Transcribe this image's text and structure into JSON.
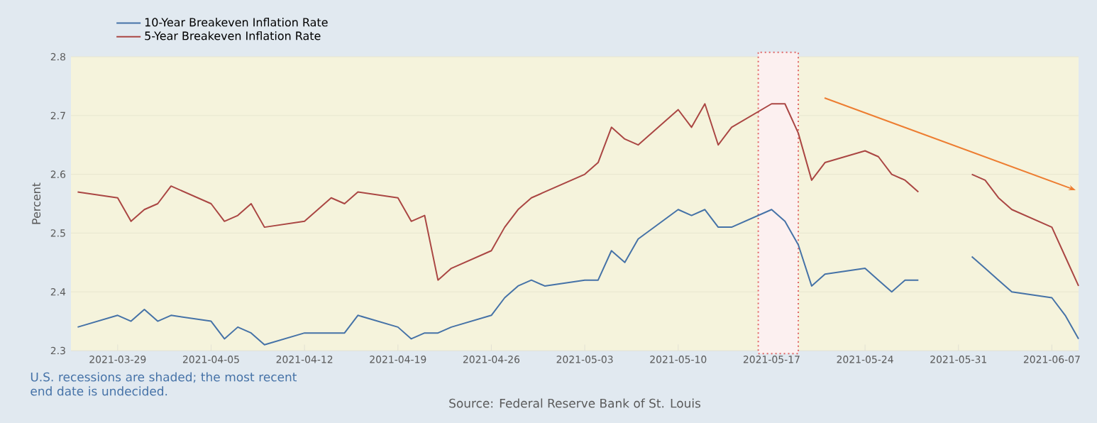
{
  "chart_data": {
    "type": "line",
    "ylabel": "Percent",
    "x": [
      "2021-03-26",
      "2021-03-29",
      "2021-03-30",
      "2021-03-31",
      "2021-04-01",
      "2021-04-02",
      "2021-04-05",
      "2021-04-06",
      "2021-04-07",
      "2021-04-08",
      "2021-04-09",
      "2021-04-12",
      "2021-04-13",
      "2021-04-14",
      "2021-04-15",
      "2021-04-16",
      "2021-04-19",
      "2021-04-20",
      "2021-04-21",
      "2021-04-22",
      "2021-04-23",
      "2021-04-26",
      "2021-04-27",
      "2021-04-28",
      "2021-04-29",
      "2021-04-30",
      "2021-05-03",
      "2021-05-04",
      "2021-05-05",
      "2021-05-06",
      "2021-05-07",
      "2021-05-10",
      "2021-05-11",
      "2021-05-12",
      "2021-05-13",
      "2021-05-14",
      "2021-05-17",
      "2021-05-18",
      "2021-05-19",
      "2021-05-20",
      "2021-05-21",
      "2021-05-24",
      "2021-05-25",
      "2021-05-26",
      "2021-05-27",
      "2021-05-28",
      "2021-05-31",
      "2021-06-01",
      "2021-06-02",
      "2021-06-03",
      "2021-06-04",
      "2021-06-07",
      "2021-06-08",
      "2021-06-09"
    ],
    "series": [
      {
        "name": "10-Year Breakeven Inflation Rate",
        "color": "#4572a7",
        "values": [
          2.34,
          2.36,
          2.35,
          2.37,
          2.35,
          2.36,
          2.35,
          2.32,
          2.34,
          2.33,
          2.31,
          2.33,
          2.33,
          2.33,
          2.33,
          2.36,
          2.34,
          2.32,
          2.33,
          2.33,
          2.34,
          2.36,
          2.39,
          2.41,
          2.42,
          2.41,
          2.42,
          2.42,
          2.47,
          2.45,
          2.49,
          2.54,
          2.53,
          2.54,
          2.51,
          2.51,
          2.54,
          2.52,
          2.48,
          2.41,
          2.43,
          2.44,
          2.42,
          2.4,
          2.42,
          2.42,
          null,
          2.46,
          2.44,
          2.42,
          2.4,
          2.39,
          2.36,
          2.32
        ]
      },
      {
        "name": "5-Year Breakeven Inflation Rate",
        "color": "#aa4643",
        "values": [
          2.57,
          2.56,
          2.52,
          2.54,
          2.55,
          2.58,
          2.55,
          2.52,
          2.53,
          2.55,
          2.51,
          2.52,
          2.54,
          2.56,
          2.55,
          2.57,
          2.56,
          2.52,
          2.53,
          2.42,
          2.44,
          2.47,
          2.51,
          2.54,
          2.56,
          2.57,
          2.6,
          2.62,
          2.68,
          2.66,
          2.65,
          2.71,
          2.68,
          2.72,
          2.65,
          2.68,
          2.72,
          2.72,
          2.67,
          2.59,
          2.62,
          2.64,
          2.63,
          2.6,
          2.59,
          2.57,
          null,
          2.6,
          2.59,
          2.56,
          2.54,
          2.51,
          2.46,
          2.41
        ]
      }
    ],
    "xlim": [
      "2021-03-25T12:00",
      "2021-06-09"
    ],
    "xticks": [
      "2021-03-29",
      "2021-04-05",
      "2021-04-12",
      "2021-04-19",
      "2021-04-26",
      "2021-05-03",
      "2021-05-10",
      "2021-05-17",
      "2021-05-24",
      "2021-05-31",
      "2021-06-07"
    ],
    "ylim": [
      2.3,
      2.8
    ],
    "yticks": [
      2.3,
      2.4,
      2.5,
      2.6,
      2.7,
      2.8
    ],
    "bands": [
      {
        "axis": "x",
        "from": "2021-05-16",
        "to": "2021-05-19",
        "color": "#e06666"
      }
    ],
    "grid": "y",
    "legend": "top left",
    "marker": "none",
    "line_style": "solid",
    "annotations": [
      "U.S. recessions are shaded; the most recent end date is undecided.",
      "Source: Federal Reserve Bank of St. Louis"
    ]
  }
}
